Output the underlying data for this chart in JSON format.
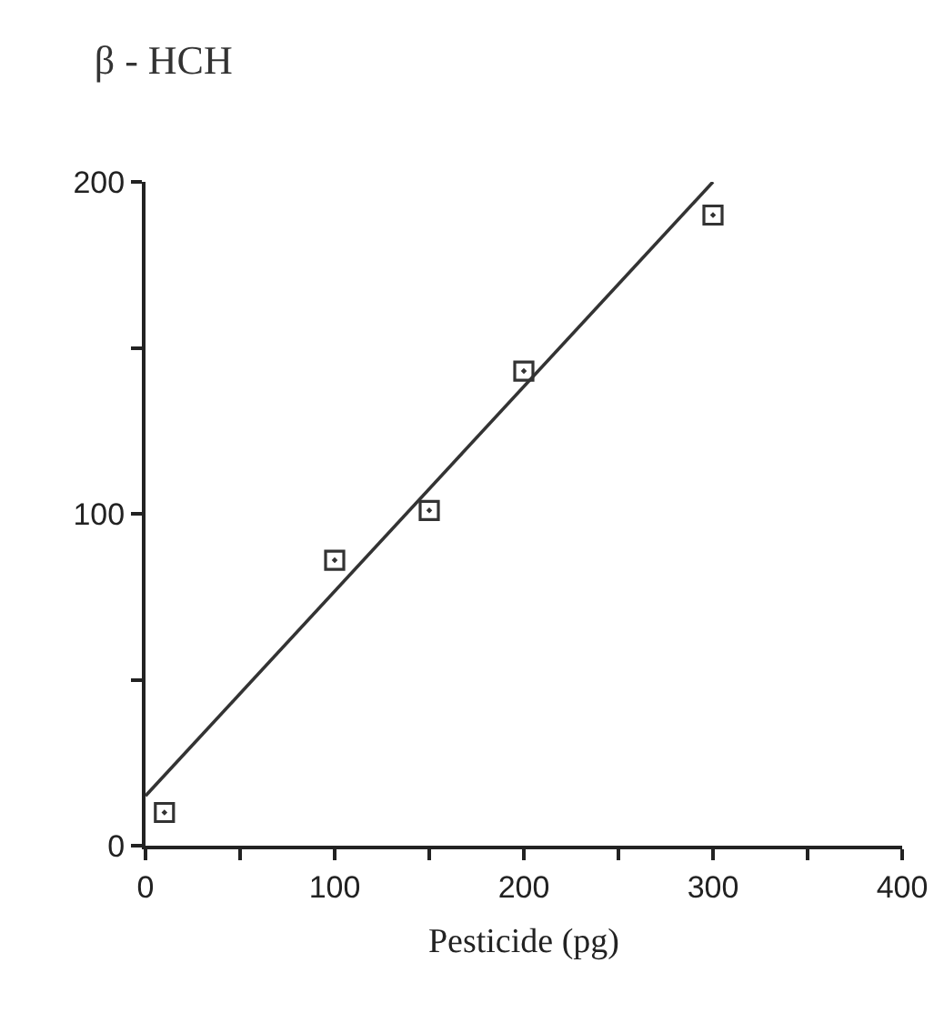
{
  "chart_data": {
    "type": "scatter",
    "title": "β - HCH",
    "xlabel": "Pesticide (pg)",
    "series": [
      {
        "x": [
          10,
          100,
          150,
          200,
          300
        ],
        "values": [
          10,
          86,
          101,
          143,
          190
        ],
        "color": "#333333",
        "marker": "square"
      },
      {
        "type": "line",
        "x": [
          0,
          300
        ],
        "values": [
          15,
          200
        ],
        "color": "#333333",
        "marker": "none",
        "line_style": "solid"
      }
    ],
    "xlim": [
      0,
      400
    ],
    "ylim": [
      0,
      200
    ],
    "xticks": [
      0,
      {
        "value": 50,
        "label": null
      },
      100,
      {
        "value": 150,
        "label": null
      },
      200,
      {
        "value": 250,
        "label": null
      },
      300,
      {
        "value": 350,
        "label": null
      },
      400
    ],
    "yticks": [
      0,
      {
        "value": 50,
        "label": null
      },
      100,
      {
        "value": 150,
        "label": null
      },
      200
    ],
    "grid": false
  }
}
